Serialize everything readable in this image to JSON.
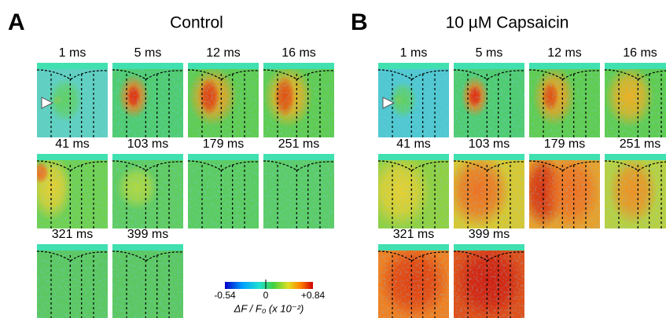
{
  "panels": [
    {
      "label": "A",
      "title": "Control",
      "frames": [
        "1 ms",
        "5 ms",
        "12 ms",
        "16 ms",
        "41 ms",
        "103 ms",
        "179 ms",
        "251 ms",
        "321 ms",
        "399 ms"
      ]
    },
    {
      "label": "B",
      "title": "10 µM Capsaicin",
      "frames": [
        "1 ms",
        "5 ms",
        "12 ms",
        "16 ms",
        "41 ms",
        "103 ms",
        "179 ms",
        "251 ms",
        "321 ms",
        "399 ms"
      ]
    }
  ],
  "colorbar": {
    "min_label": "-0.54",
    "mid_label": "0",
    "max_label": "+0.84",
    "axis_label": "ΔF / F₀ (x 10⁻²)"
  }
}
